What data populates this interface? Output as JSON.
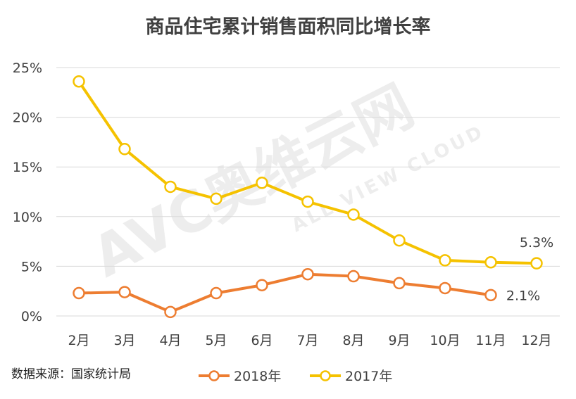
{
  "chart_data": {
    "type": "line",
    "title": "商品住宅累计销售面积同比增长率",
    "categories": [
      "2月",
      "3月",
      "4月",
      "5月",
      "6月",
      "7月",
      "8月",
      "9月",
      "10月",
      "11月",
      "12月"
    ],
    "y_ticks": [
      "0%",
      "5%",
      "10%",
      "15%",
      "20%",
      "25%"
    ],
    "ylim": [
      0,
      25
    ],
    "grid": true,
    "legend_position": "bottom",
    "series": [
      {
        "name": "2018年",
        "color": "#ED7D31",
        "values": [
          2.3,
          2.4,
          0.4,
          2.3,
          3.1,
          4.2,
          4.0,
          3.3,
          2.8,
          2.1,
          null
        ]
      },
      {
        "name": "2017年",
        "color": "#F5C200",
        "values": [
          23.6,
          16.8,
          13.0,
          11.8,
          13.4,
          11.5,
          10.2,
          7.6,
          5.6,
          5.4,
          5.3
        ]
      }
    ],
    "annotations": [
      "5.3%",
      "2.1%"
    ],
    "source": "数据来源：国家统计局"
  },
  "watermark": {
    "brand": "AVC奥维云网",
    "sub": "ALL VIEW CLOUD"
  }
}
